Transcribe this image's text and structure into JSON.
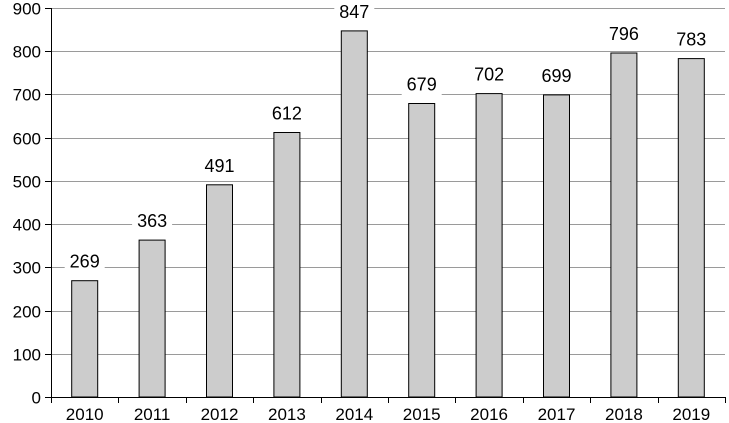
{
  "chart_data": {
    "type": "bar",
    "categories": [
      "2010",
      "2011",
      "2012",
      "2013",
      "2014",
      "2015",
      "2016",
      "2017",
      "2018",
      "2019"
    ],
    "values": [
      269,
      363,
      491,
      612,
      847,
      679,
      702,
      699,
      796,
      783
    ],
    "data_labels": [
      "269",
      "363",
      "491",
      "612",
      "847",
      "679",
      "702",
      "699",
      "796",
      "783"
    ],
    "y_ticks": [
      "0",
      "100",
      "200",
      "300",
      "400",
      "500",
      "600",
      "700",
      "800",
      "900"
    ],
    "ylim": [
      0,
      900
    ],
    "grid": true,
    "legend": "none",
    "colors": {
      "bar_fill": "#cccccc",
      "bar_stroke": "#000000",
      "grid": "#9a9a9a"
    }
  }
}
